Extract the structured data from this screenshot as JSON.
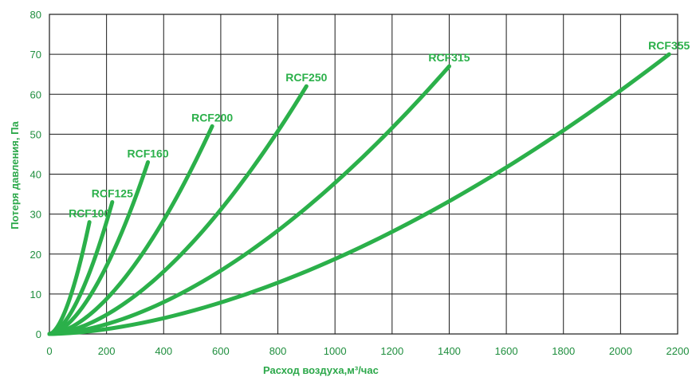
{
  "colors": {
    "series": "#2bb04a",
    "text": "#2ca84a",
    "grid": "#1a1a1a"
  },
  "chart_data": {
    "type": "line",
    "xlabel": "Расход воздуха,м³/час",
    "ylabel": "Потеря давления, Па",
    "xlim": [
      0,
      2200
    ],
    "ylim": [
      0,
      80
    ],
    "xticks": [
      0,
      200,
      400,
      600,
      800,
      1000,
      1200,
      1400,
      1600,
      1800,
      2000,
      2200
    ],
    "yticks": [
      0,
      10,
      20,
      30,
      40,
      50,
      60,
      70,
      80
    ],
    "grid": true,
    "series": [
      {
        "name": "RCF100",
        "exponent": 1.7,
        "points": [
          [
            0,
            0
          ],
          [
            140,
            28
          ]
        ]
      },
      {
        "name": "RCF125",
        "exponent": 1.7,
        "points": [
          [
            0,
            0
          ],
          [
            220,
            33
          ]
        ]
      },
      {
        "name": "RCF160",
        "exponent": 1.7,
        "points": [
          [
            0,
            0
          ],
          [
            345,
            43
          ]
        ]
      },
      {
        "name": "RCF200",
        "exponent": 1.7,
        "points": [
          [
            0,
            0
          ],
          [
            570,
            52
          ]
        ]
      },
      {
        "name": "RCF250",
        "exponent": 1.7,
        "points": [
          [
            0,
            0
          ],
          [
            900,
            62
          ]
        ]
      },
      {
        "name": "RCF315",
        "exponent": 1.7,
        "points": [
          [
            0,
            0
          ],
          [
            1400,
            67
          ]
        ]
      },
      {
        "name": "RCF355",
        "exponent": 1.7,
        "points": [
          [
            0,
            0
          ],
          [
            2170,
            70
          ]
        ]
      }
    ]
  }
}
